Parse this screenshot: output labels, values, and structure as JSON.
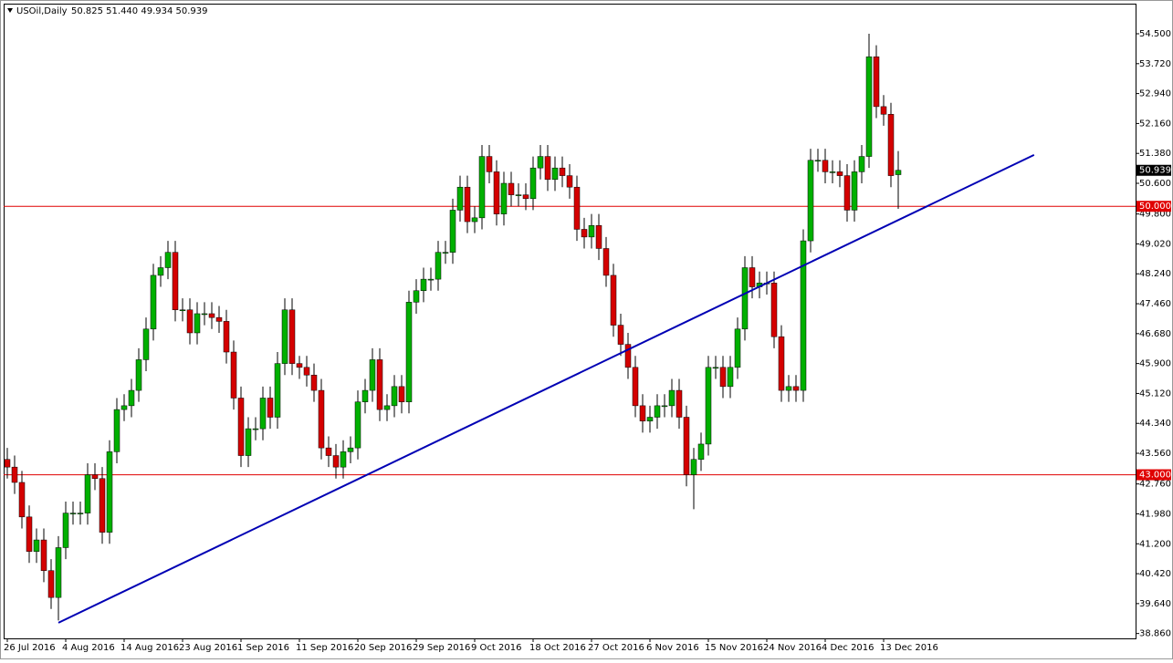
{
  "chart_data": {
    "type": "candlestick",
    "title": "USOil,Daily",
    "ohlc_label": "50.825 51.440 49.934 50.939",
    "up_color": "#00b000",
    "down_color": "#d40000",
    "categories": [
      "26 Jul 2016",
      null,
      null,
      null,
      null,
      null,
      null,
      null,
      "4 Aug 2016",
      null,
      null,
      null,
      null,
      null,
      null,
      null,
      "14 Aug 2016",
      null,
      null,
      null,
      null,
      null,
      null,
      null,
      "23 Aug 2016",
      null,
      null,
      null,
      null,
      null,
      null,
      null,
      "1 Sep 2016",
      null,
      null,
      null,
      null,
      null,
      null,
      null,
      "11 Sep 2016",
      null,
      null,
      null,
      null,
      null,
      null,
      null,
      "20 Sep 2016",
      null,
      null,
      null,
      null,
      null,
      null,
      null,
      "29 Sep 2016",
      null,
      null,
      null,
      null,
      null,
      null,
      null,
      "9 Oct 2016",
      null,
      null,
      null,
      null,
      null,
      null,
      null,
      "18 Oct 2016",
      null,
      null,
      null,
      null,
      null,
      null,
      null,
      "27 Oct 2016",
      null,
      null,
      null,
      null,
      null,
      null,
      null,
      "6 Nov 2016",
      null,
      null,
      null,
      null,
      null,
      null,
      null,
      "15 Nov 2016",
      null,
      null,
      null,
      null,
      null,
      null,
      null,
      "24 Nov 2016",
      null,
      null,
      null,
      null,
      null,
      null,
      null,
      "4 Dec 2016",
      null,
      null,
      null,
      null,
      null,
      null,
      null,
      "13 Dec 2016",
      null,
      null
    ],
    "open": [
      43.4,
      43.2,
      42.8,
      41.9,
      41.0,
      41.3,
      40.5,
      39.8,
      41.1,
      42.0,
      42.0,
      42.0,
      43.0,
      42.9,
      41.5,
      43.6,
      44.7,
      44.8,
      45.2,
      46.0,
      46.8,
      48.2,
      48.4,
      48.8,
      47.3,
      47.3,
      46.7,
      47.2,
      47.2,
      47.1,
      47.0,
      46.2,
      45.0,
      43.5,
      44.2,
      44.2,
      45.0,
      44.5,
      45.9,
      47.3,
      45.9,
      45.8,
      45.6,
      45.2,
      43.7,
      43.5,
      43.2,
      43.6,
      43.7,
      44.9,
      45.2,
      46.0,
      44.7,
      44.8,
      45.3,
      44.9,
      47.5,
      47.8,
      48.1,
      48.1,
      48.8,
      48.8,
      49.9,
      50.5,
      49.6,
      49.7,
      51.3,
      50.9,
      49.8,
      50.6,
      50.3,
      50.3,
      50.2,
      51.0,
      51.3,
      50.7,
      51.0,
      50.8,
      50.5,
      49.4,
      49.2,
      49.5,
      48.9,
      48.2,
      46.9,
      46.4,
      45.8,
      44.8,
      44.4,
      44.5,
      44.8,
      44.8,
      45.2,
      44.5,
      43.0,
      43.4,
      43.8,
      45.8,
      45.8,
      45.3,
      45.8,
      46.8,
      48.4,
      47.9,
      48.0,
      48.0,
      46.6,
      45.2,
      45.3,
      45.2,
      49.1,
      51.2,
      51.2,
      50.9,
      50.9,
      50.8,
      49.9,
      50.9,
      51.3,
      53.9,
      52.6,
      52.4,
      50.825
    ],
    "high": [
      43.7,
      43.5,
      43.1,
      42.2,
      41.6,
      41.6,
      40.8,
      41.4,
      42.3,
      42.3,
      42.3,
      43.3,
      43.3,
      43.2,
      43.9,
      45.0,
      45.1,
      45.5,
      46.3,
      47.1,
      48.5,
      48.7,
      49.1,
      49.1,
      47.6,
      47.6,
      47.5,
      47.5,
      47.5,
      47.4,
      47.3,
      46.5,
      45.3,
      44.5,
      44.5,
      45.3,
      45.3,
      46.2,
      47.6,
      47.6,
      46.1,
      46.1,
      45.9,
      45.5,
      44.0,
      43.8,
      43.9,
      44.0,
      45.2,
      45.5,
      46.3,
      46.3,
      45.1,
      45.6,
      45.6,
      47.8,
      48.1,
      48.4,
      48.4,
      49.1,
      49.1,
      50.2,
      50.8,
      50.8,
      50.0,
      51.6,
      51.6,
      51.2,
      50.9,
      50.9,
      50.6,
      50.6,
      51.3,
      51.6,
      51.6,
      51.3,
      51.3,
      51.1,
      50.8,
      49.7,
      49.8,
      49.8,
      49.2,
      48.5,
      47.2,
      46.7,
      46.1,
      45.1,
      44.8,
      45.1,
      45.1,
      45.5,
      45.5,
      44.8,
      43.7,
      44.1,
      46.1,
      46.1,
      46.1,
      46.1,
      47.1,
      48.7,
      48.7,
      48.3,
      48.3,
      48.3,
      46.9,
      45.6,
      45.6,
      49.4,
      51.5,
      51.5,
      51.5,
      51.2,
      51.2,
      51.1,
      51.2,
      51.6,
      54.5,
      54.2,
      52.9,
      52.7,
      51.44
    ],
    "low": [
      42.9,
      42.5,
      41.6,
      40.7,
      40.7,
      40.2,
      39.5,
      39.2,
      40.8,
      41.7,
      41.7,
      41.7,
      42.6,
      41.2,
      41.2,
      43.3,
      44.4,
      44.5,
      44.9,
      45.7,
      46.5,
      47.9,
      48.1,
      47.0,
      47.0,
      46.4,
      46.4,
      46.9,
      46.8,
      46.7,
      45.9,
      44.7,
      43.2,
      43.2,
      43.9,
      43.9,
      44.2,
      44.2,
      45.6,
      45.6,
      45.5,
      45.3,
      44.9,
      43.4,
      43.2,
      42.9,
      42.9,
      43.3,
      43.4,
      44.6,
      44.9,
      44.4,
      44.4,
      44.5,
      44.6,
      44.6,
      47.2,
      47.5,
      47.8,
      47.8,
      48.5,
      48.5,
      49.6,
      49.3,
      49.3,
      49.4,
      50.6,
      49.5,
      49.5,
      50.0,
      50.0,
      49.9,
      49.9,
      50.7,
      50.4,
      50.4,
      50.5,
      50.2,
      49.1,
      48.9,
      48.9,
      48.6,
      47.9,
      46.6,
      46.1,
      45.5,
      44.5,
      44.1,
      44.1,
      44.2,
      44.5,
      44.5,
      44.2,
      42.7,
      42.1,
      43.1,
      43.5,
      45.5,
      45.0,
      45.0,
      45.5,
      46.5,
      47.6,
      47.6,
      47.7,
      46.3,
      44.9,
      44.9,
      44.9,
      44.9,
      48.8,
      50.9,
      50.6,
      50.6,
      50.5,
      49.6,
      49.6,
      50.6,
      51.0,
      52.3,
      52.1,
      50.5,
      49.934
    ],
    "close": [
      43.2,
      42.8,
      41.9,
      41.0,
      41.3,
      40.5,
      39.8,
      41.1,
      42.0,
      42.0,
      42.0,
      43.0,
      42.9,
      41.5,
      43.6,
      44.7,
      44.8,
      45.2,
      46.0,
      46.8,
      48.2,
      48.4,
      48.8,
      47.3,
      47.3,
      46.7,
      47.2,
      47.2,
      47.1,
      47.0,
      46.2,
      45.0,
      43.5,
      44.2,
      44.2,
      45.0,
      44.5,
      45.9,
      47.3,
      45.9,
      45.8,
      45.6,
      45.2,
      43.7,
      43.5,
      43.2,
      43.6,
      43.7,
      44.9,
      45.2,
      46.0,
      44.7,
      44.8,
      45.3,
      44.9,
      47.5,
      47.8,
      48.1,
      48.1,
      48.8,
      48.8,
      49.9,
      50.5,
      49.6,
      49.7,
      51.3,
      50.9,
      49.8,
      50.6,
      50.3,
      50.3,
      50.2,
      51.0,
      51.3,
      50.7,
      51.0,
      50.8,
      50.5,
      49.4,
      49.2,
      49.5,
      48.9,
      48.2,
      46.9,
      46.4,
      45.8,
      44.8,
      44.4,
      44.5,
      44.8,
      44.8,
      45.2,
      44.5,
      43.0,
      43.4,
      43.8,
      45.8,
      45.8,
      45.3,
      45.8,
      46.8,
      48.4,
      47.9,
      48.0,
      48.0,
      46.6,
      45.2,
      45.3,
      45.2,
      49.1,
      51.2,
      51.2,
      50.9,
      50.9,
      50.8,
      49.9,
      50.9,
      51.3,
      53.9,
      52.6,
      52.4,
      50.8,
      50.939
    ],
    "ylim": [
      38.733,
      55.285
    ],
    "yticks": [
      {
        "value": 54.5,
        "label": "54.500"
      },
      {
        "value": 53.72,
        "label": "53.720"
      },
      {
        "value": 52.94,
        "label": "52.940"
      },
      {
        "value": 52.16,
        "label": "52.160"
      },
      {
        "value": 51.38,
        "label": "51.380"
      },
      {
        "value": 50.6,
        "label": "50.600"
      },
      {
        "value": 49.8,
        "label": "49.800"
      },
      {
        "value": 49.02,
        "label": "49.020"
      },
      {
        "value": 48.24,
        "label": "48.240"
      },
      {
        "value": 47.46,
        "label": "47.460"
      },
      {
        "value": 46.68,
        "label": "46.680"
      },
      {
        "value": 45.9,
        "label": "45.900"
      },
      {
        "value": 45.12,
        "label": "45.120"
      },
      {
        "value": 44.34,
        "label": "44.340"
      },
      {
        "value": 43.56,
        "label": "43.560"
      },
      {
        "value": 42.76,
        "label": "42.760"
      },
      {
        "value": 41.98,
        "label": "41.980"
      },
      {
        "value": 41.2,
        "label": "41.200"
      },
      {
        "value": 40.42,
        "label": "40.420"
      },
      {
        "value": 39.64,
        "label": "39.640"
      },
      {
        "value": 38.86,
        "label": "38.860"
      }
    ],
    "hlines": [
      {
        "value": 50,
        "label": "50.000",
        "color": "#e00000"
      },
      {
        "value": 43,
        "label": "43.000",
        "color": "#e00000"
      }
    ],
    "last_price": {
      "value": 50.939,
      "label": "50.939"
    },
    "trendline": {
      "x": [
        7,
        140.6
      ],
      "y": [
        39.14,
        51.34
      ],
      "color": "#0000b4"
    }
  }
}
